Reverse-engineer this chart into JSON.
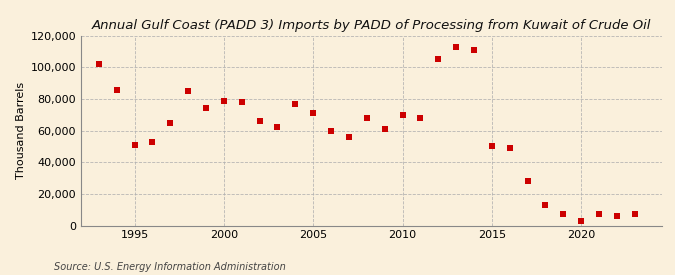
{
  "title": "Annual Gulf Coast (PADD 3) Imports by PADD of Processing from Kuwait of Crude Oil",
  "ylabel": "Thousand Barrels",
  "source": "Source: U.S. Energy Information Administration",
  "background_color": "#faf0dc",
  "marker_color": "#cc0000",
  "years": [
    1993,
    1994,
    1995,
    1996,
    1997,
    1998,
    1999,
    2000,
    2001,
    2002,
    2003,
    2004,
    2005,
    2006,
    2007,
    2008,
    2009,
    2010,
    2011,
    2012,
    2013,
    2014,
    2015,
    2016,
    2017,
    2018,
    2019,
    2020,
    2021,
    2022,
    2023
  ],
  "values": [
    102000,
    86000,
    51000,
    53000,
    65000,
    85000,
    74000,
    79000,
    78000,
    66000,
    62000,
    77000,
    71000,
    60000,
    56000,
    68000,
    61000,
    70000,
    68000,
    105000,
    113000,
    111000,
    50000,
    49000,
    28000,
    13000,
    7000,
    3000,
    7000,
    6000,
    7000
  ],
  "ylim": [
    0,
    120000
  ],
  "yticks": [
    0,
    20000,
    40000,
    60000,
    80000,
    100000,
    120000
  ],
  "xlim": [
    1992.0,
    2024.5
  ],
  "xticks": [
    1995,
    2000,
    2005,
    2010,
    2015,
    2020
  ],
  "title_fontsize": 9.5,
  "ylabel_fontsize": 8,
  "tick_fontsize": 8,
  "source_fontsize": 7,
  "marker_size": 16
}
